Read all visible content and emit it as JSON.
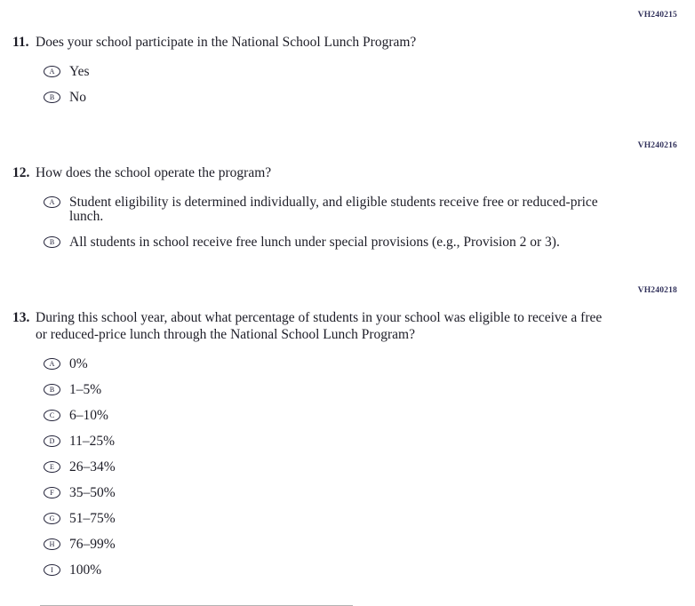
{
  "page": {
    "background": "#ffffff",
    "text_color": "#1d1d27",
    "code_color": "#30305a",
    "oval_color": "#23233a",
    "rule_color": "#b3b3b3"
  },
  "questions": [
    {
      "code": "VH240215",
      "number": "11.",
      "text": "Does your school participate in the National School Lunch Program?",
      "options": [
        {
          "letter": "A",
          "label": "Yes"
        },
        {
          "letter": "B",
          "label": "No"
        }
      ]
    },
    {
      "code": "VH240216",
      "number": "12.",
      "text": "How does the school operate the program?",
      "options": [
        {
          "letter": "A",
          "label": "Student eligibility is determined individually, and eligible students receive free or reduced-price lunch."
        },
        {
          "letter": "B",
          "label": "All students in school receive free lunch under special provisions (e.g., Provision 2 or 3)."
        }
      ]
    },
    {
      "code": "VH240218",
      "number": "13.",
      "text": "During this school year, about what percentage of students in your school was eligible to receive a free or reduced-price lunch through the National School Lunch Program?",
      "options": [
        {
          "letter": "A",
          "label": "0%"
        },
        {
          "letter": "B",
          "label": "1–5%"
        },
        {
          "letter": "C",
          "label": "6–10%"
        },
        {
          "letter": "D",
          "label": "11–25%"
        },
        {
          "letter": "E",
          "label": "26–34%"
        },
        {
          "letter": "F",
          "label": "35–50%"
        },
        {
          "letter": "G",
          "label": "51–75%"
        },
        {
          "letter": "H",
          "label": "76–99%"
        },
        {
          "letter": "I",
          "label": "100%"
        }
      ]
    }
  ]
}
